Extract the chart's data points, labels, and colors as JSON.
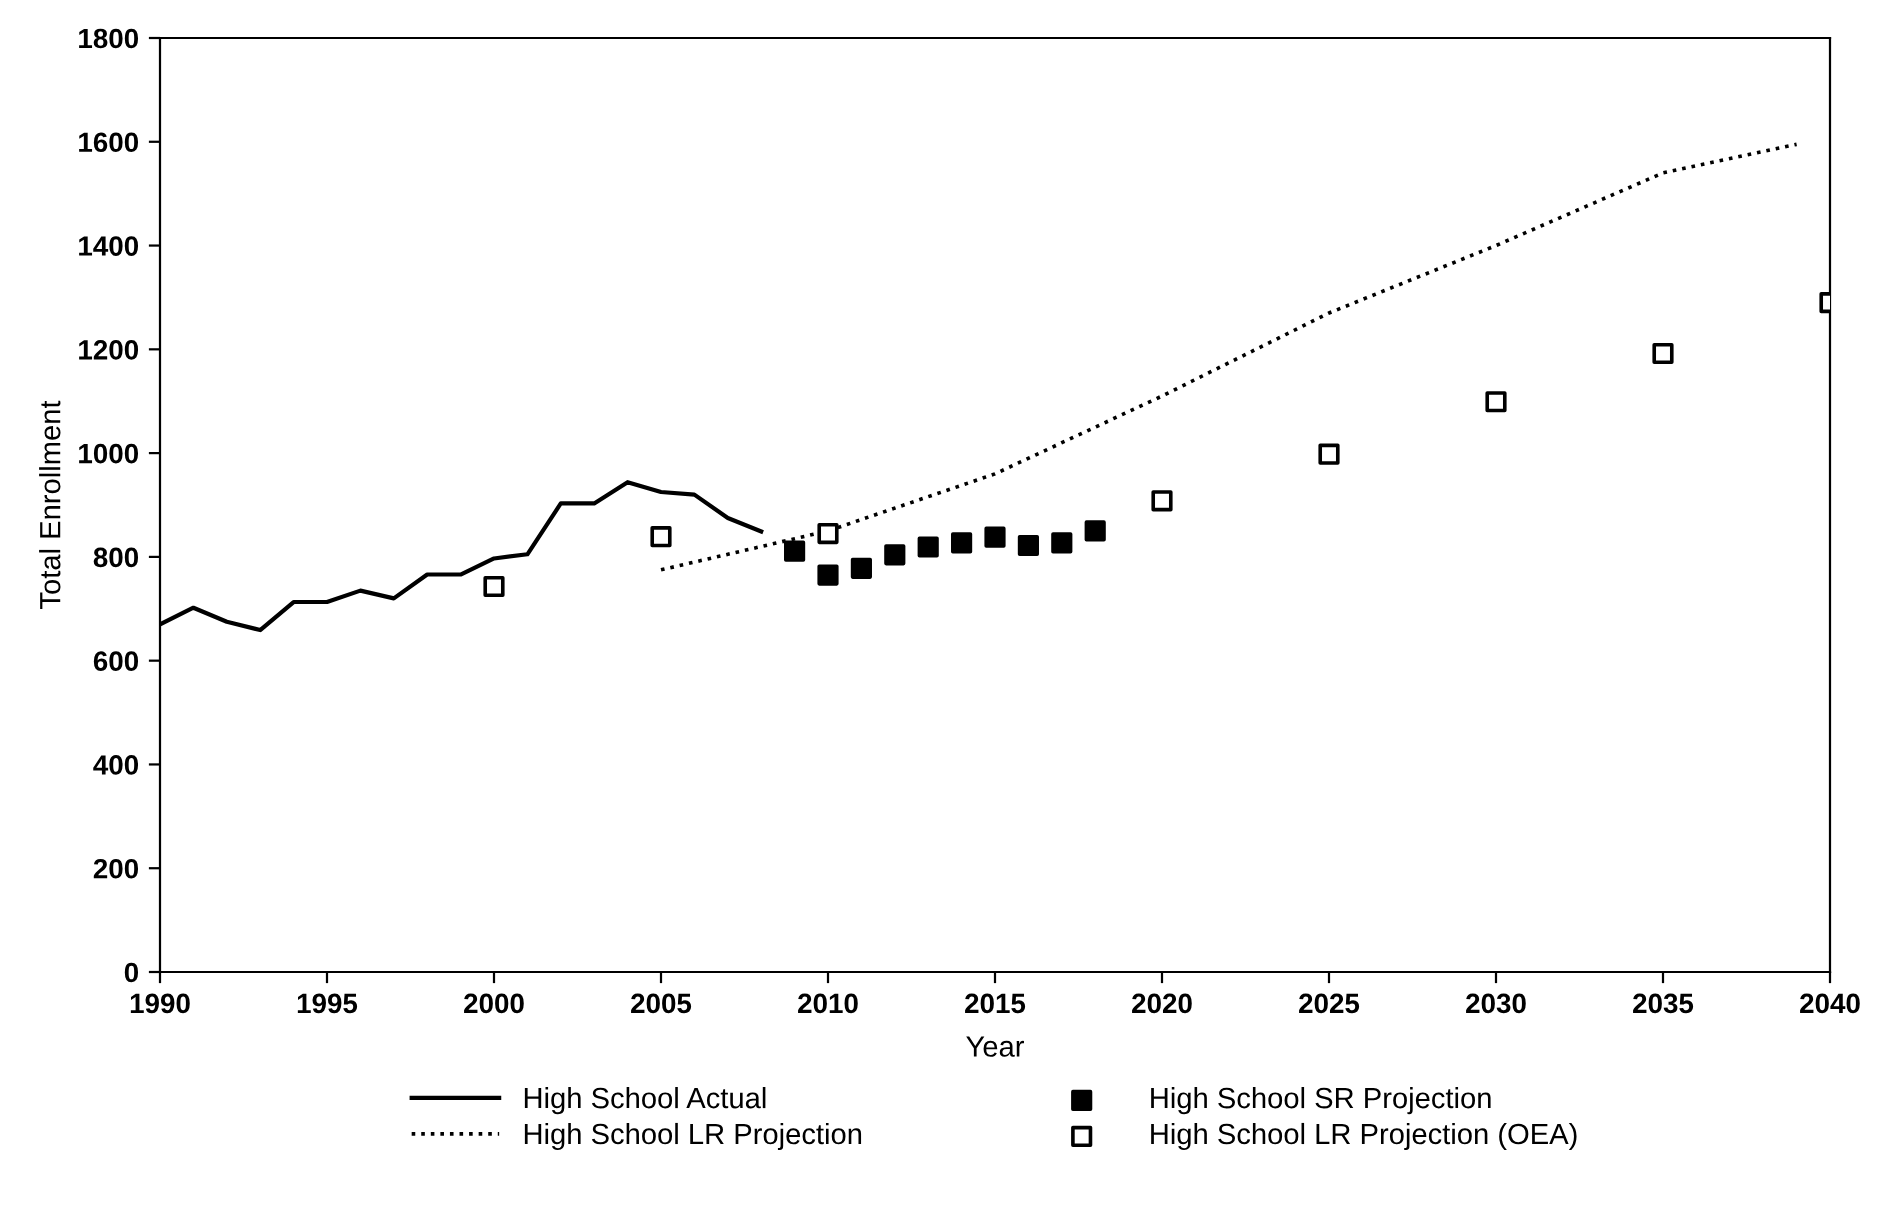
{
  "chart_data": {
    "type": "line",
    "xlabel": "Year",
    "ylabel": "Total Enrollment",
    "xlim": [
      1990,
      2040
    ],
    "xticks": [
      1990,
      1995,
      2000,
      2005,
      2010,
      2015,
      2020,
      2025,
      2030,
      2035,
      2040
    ],
    "ylim": [
      0,
      1800
    ],
    "yticks": [
      0,
      200,
      400,
      600,
      800,
      1000,
      1200,
      1400,
      1600,
      1800
    ],
    "grid": false,
    "legend": "bottom",
    "series": [
      {
        "name": "High School Actual",
        "line_style": "solid",
        "marker": "none",
        "color": "#000000",
        "x": [
          1990,
          1991,
          1992,
          1993,
          1994,
          1995,
          1996,
          1997,
          1998,
          1999,
          2000,
          2001,
          2002,
          2003,
          2004,
          2005,
          2006,
          2007,
          2008
        ],
        "values": [
          670,
          702,
          675,
          659,
          713,
          713,
          735,
          720,
          766,
          766,
          797,
          805,
          903,
          903,
          944,
          925,
          920,
          875,
          849
        ]
      },
      {
        "name": "High School LR Projection",
        "line_style": "dotted",
        "marker": "none",
        "color": "#000000",
        "x": [
          2005,
          2010,
          2015,
          2020,
          2025,
          2030,
          2035,
          2039
        ],
        "values": [
          775,
          850,
          960,
          1110,
          1270,
          1400,
          1540,
          1595
        ]
      },
      {
        "name": "High School SR Projection",
        "type": "scatter",
        "marker": "square",
        "color": "#000000",
        "x": [
          2009,
          2010,
          2011,
          2012,
          2013,
          2014,
          2015,
          2016,
          2017,
          2018
        ],
        "values": [
          811,
          765,
          778,
          804,
          819,
          827,
          838,
          822,
          827,
          850
        ]
      },
      {
        "name": "High School LR Projection (OEA)",
        "type": "scatter",
        "marker": "square",
        "color": "#ffffff",
        "x": [
          2000,
          2005,
          2010,
          2020,
          2025,
          2030,
          2035,
          2040
        ],
        "values": [
          743,
          839,
          845,
          908,
          998,
          1099,
          1192,
          1290
        ]
      }
    ]
  }
}
